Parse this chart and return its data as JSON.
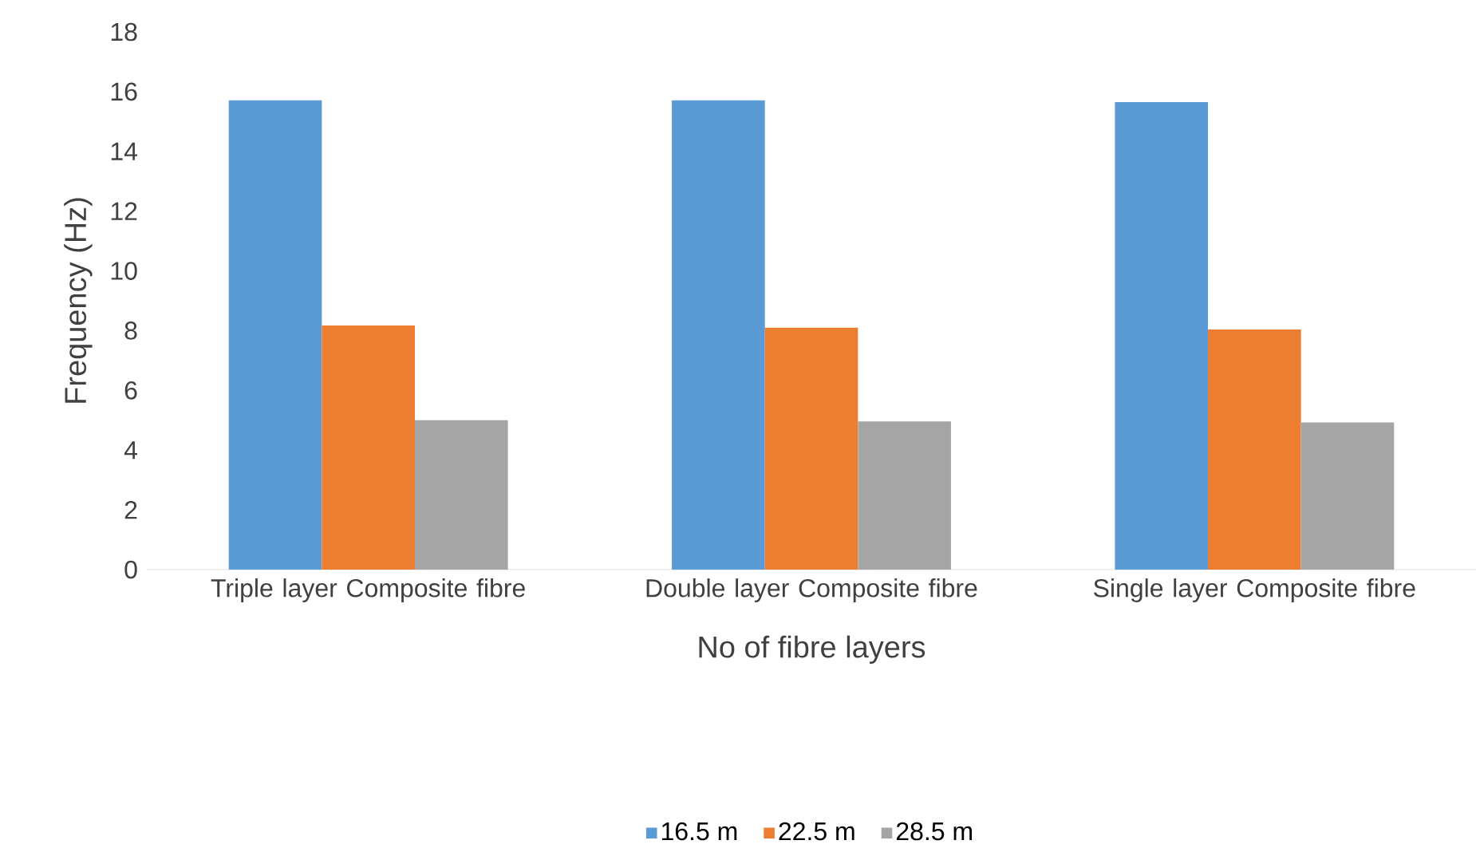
{
  "chart_data": {
    "type": "bar",
    "xlabel": "No of fibre layers",
    "ylabel": "Frequency (Hz)",
    "categories": [
      "Triple layer Composite fibre",
      "Double layer Composite fibre",
      "Single layer Composite fibre"
    ],
    "series": [
      {
        "name": "16.5 m",
        "color": "#5b9bd5",
        "values": [
          15.71,
          15.71,
          15.65
        ]
      },
      {
        "name": "22.5 m",
        "color": "#ed7d31",
        "values": [
          8.17,
          8.1,
          8.04
        ]
      },
      {
        "name": "28.5 m",
        "color": "#a5a5a5",
        "values": [
          5.0,
          4.96,
          4.93
        ]
      }
    ],
    "ylim": [
      0,
      18
    ],
    "yticks": [
      0,
      2,
      4,
      6,
      8,
      10,
      12,
      14,
      16,
      18
    ],
    "grid": false,
    "legend": "bottom"
  }
}
